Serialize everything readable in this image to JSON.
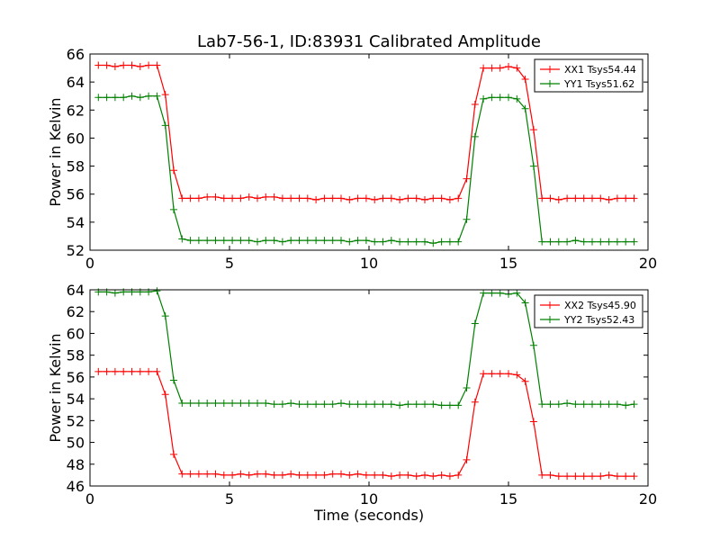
{
  "title": "Lab7-56-1, ID:83931 Calibrated Amplitude",
  "colors": {
    "red": "#ff0000",
    "green": "#008000"
  },
  "chart_data": [
    {
      "type": "line",
      "title": "Lab7-56-1, ID:83931 Calibrated Amplitude",
      "xlabel": "",
      "ylabel": "Power in Kelvin",
      "xlim": [
        0,
        20
      ],
      "ylim": [
        52,
        66
      ],
      "xticks": [
        0,
        5,
        10,
        15,
        20
      ],
      "yticks": [
        52,
        54,
        56,
        58,
        60,
        62,
        64,
        66
      ],
      "legend_position": "top-right",
      "grid": false,
      "x": [
        0.3,
        0.6,
        0.9,
        1.2,
        1.5,
        1.8,
        2.1,
        2.4,
        2.7,
        3.0,
        3.3,
        3.6,
        3.9,
        4.2,
        4.5,
        4.8,
        5.1,
        5.4,
        5.7,
        6.0,
        6.3,
        6.6,
        6.9,
        7.2,
        7.5,
        7.8,
        8.1,
        8.4,
        8.7,
        9.0,
        9.3,
        9.6,
        9.9,
        10.2,
        10.5,
        10.8,
        11.1,
        11.4,
        11.7,
        12.0,
        12.3,
        12.6,
        12.9,
        13.2,
        13.5,
        13.8,
        14.1,
        14.4,
        14.7,
        15.0,
        15.3,
        15.6,
        15.9,
        16.2,
        16.5,
        16.8,
        17.1,
        17.4,
        17.7,
        18.0,
        18.3,
        18.6,
        18.9,
        19.2,
        19.5
      ],
      "series": [
        {
          "name": "XX1 Tsys54.44",
          "color": "#ff0000",
          "values": [
            65.2,
            65.2,
            65.1,
            65.2,
            65.2,
            65.1,
            65.2,
            65.2,
            63.1,
            57.7,
            55.7,
            55.7,
            55.7,
            55.8,
            55.8,
            55.7,
            55.7,
            55.7,
            55.8,
            55.7,
            55.8,
            55.8,
            55.7,
            55.7,
            55.7,
            55.7,
            55.6,
            55.7,
            55.7,
            55.7,
            55.6,
            55.7,
            55.7,
            55.6,
            55.7,
            55.7,
            55.6,
            55.7,
            55.7,
            55.6,
            55.7,
            55.7,
            55.6,
            55.7,
            57.1,
            62.4,
            65.0,
            65.0,
            65.0,
            65.1,
            65.0,
            64.2,
            60.6,
            55.7,
            55.7,
            55.6,
            55.7,
            55.7,
            55.7,
            55.7,
            55.7,
            55.6,
            55.7,
            55.7,
            55.7
          ]
        },
        {
          "name": "YY1 Tsys51.62",
          "color": "#008000",
          "values": [
            62.9,
            62.9,
            62.9,
            62.9,
            63.0,
            62.9,
            63.0,
            63.0,
            60.9,
            54.9,
            52.8,
            52.7,
            52.7,
            52.7,
            52.7,
            52.7,
            52.7,
            52.7,
            52.7,
            52.6,
            52.7,
            52.7,
            52.6,
            52.7,
            52.7,
            52.7,
            52.7,
            52.7,
            52.7,
            52.7,
            52.6,
            52.7,
            52.7,
            52.6,
            52.6,
            52.7,
            52.6,
            52.6,
            52.6,
            52.6,
            52.5,
            52.6,
            52.6,
            52.6,
            54.2,
            60.1,
            62.8,
            62.9,
            62.9,
            62.9,
            62.8,
            62.1,
            58.0,
            52.6,
            52.6,
            52.6,
            52.6,
            52.7,
            52.6,
            52.6,
            52.6,
            52.6,
            52.6,
            52.6,
            52.6
          ]
        }
      ]
    },
    {
      "type": "line",
      "title": "",
      "xlabel": "Time (seconds)",
      "ylabel": "Power in Kelvin",
      "xlim": [
        0,
        20
      ],
      "ylim": [
        46,
        64
      ],
      "xticks": [
        0,
        5,
        10,
        15,
        20
      ],
      "yticks": [
        46,
        48,
        50,
        52,
        54,
        56,
        58,
        60,
        62,
        64
      ],
      "legend_position": "top-right",
      "grid": false,
      "x": [
        0.3,
        0.6,
        0.9,
        1.2,
        1.5,
        1.8,
        2.1,
        2.4,
        2.7,
        3.0,
        3.3,
        3.6,
        3.9,
        4.2,
        4.5,
        4.8,
        5.1,
        5.4,
        5.7,
        6.0,
        6.3,
        6.6,
        6.9,
        7.2,
        7.5,
        7.8,
        8.1,
        8.4,
        8.7,
        9.0,
        9.3,
        9.6,
        9.9,
        10.2,
        10.5,
        10.8,
        11.1,
        11.4,
        11.7,
        12.0,
        12.3,
        12.6,
        12.9,
        13.2,
        13.5,
        13.8,
        14.1,
        14.4,
        14.7,
        15.0,
        15.3,
        15.6,
        15.9,
        16.2,
        16.5,
        16.8,
        17.1,
        17.4,
        17.7,
        18.0,
        18.3,
        18.6,
        18.9,
        19.2,
        19.5
      ],
      "series": [
        {
          "name": "XX2 Tsys45.90",
          "color": "#ff0000",
          "values": [
            56.5,
            56.5,
            56.5,
            56.5,
            56.5,
            56.5,
            56.5,
            56.5,
            54.4,
            48.9,
            47.1,
            47.1,
            47.1,
            47.1,
            47.1,
            47.0,
            47.0,
            47.1,
            47.0,
            47.1,
            47.1,
            47.0,
            47.0,
            47.1,
            47.0,
            47.0,
            47.0,
            47.0,
            47.1,
            47.1,
            47.0,
            47.1,
            47.0,
            47.0,
            47.0,
            46.9,
            47.0,
            47.0,
            46.9,
            47.0,
            46.9,
            47.0,
            46.9,
            47.0,
            48.4,
            53.7,
            56.3,
            56.3,
            56.3,
            56.3,
            56.2,
            55.6,
            51.9,
            47.0,
            47.0,
            46.9,
            46.9,
            46.9,
            46.9,
            46.9,
            46.9,
            47.0,
            46.9,
            46.9,
            46.9
          ]
        },
        {
          "name": "YY2 Tsys52.43",
          "color": "#008000",
          "values": [
            63.8,
            63.8,
            63.7,
            63.8,
            63.8,
            63.8,
            63.8,
            63.9,
            61.6,
            55.7,
            53.6,
            53.6,
            53.6,
            53.6,
            53.6,
            53.6,
            53.6,
            53.6,
            53.6,
            53.6,
            53.6,
            53.5,
            53.5,
            53.6,
            53.5,
            53.5,
            53.5,
            53.5,
            53.5,
            53.6,
            53.5,
            53.5,
            53.5,
            53.5,
            53.5,
            53.5,
            53.4,
            53.5,
            53.5,
            53.5,
            53.5,
            53.4,
            53.4,
            53.4,
            55.0,
            60.9,
            63.7,
            63.7,
            63.7,
            63.6,
            63.7,
            62.8,
            58.9,
            53.5,
            53.5,
            53.5,
            53.6,
            53.5,
            53.5,
            53.5,
            53.5,
            53.5,
            53.5,
            53.4,
            53.5
          ]
        }
      ]
    }
  ]
}
